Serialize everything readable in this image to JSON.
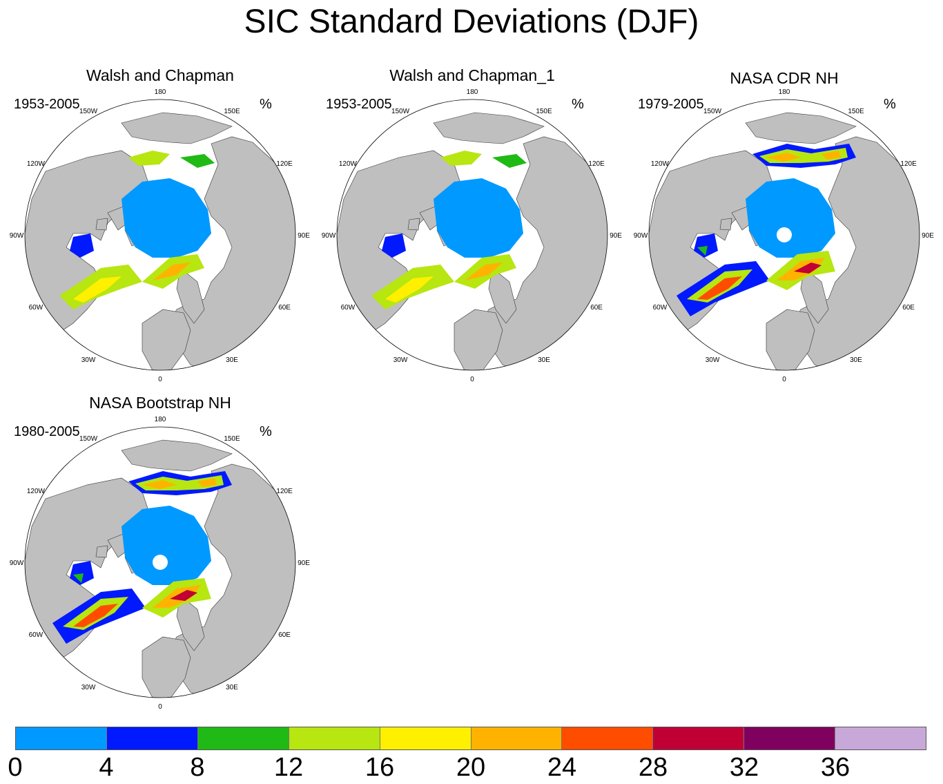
{
  "title": "SIC Standard Deviations (DJF)",
  "units_label": "%",
  "lon_labels": [
    "180",
    "150E",
    "120E",
    "90E",
    "60E",
    "30E",
    "0",
    "30W",
    "60W",
    "90W",
    "120W",
    "150W"
  ],
  "panels": [
    {
      "title": "Walsh and Chapman",
      "period": "1953-2005",
      "pole_hole": false,
      "style": "wc"
    },
    {
      "title": "Walsh and Chapman_1",
      "period": "1953-2005",
      "pole_hole": false,
      "style": "wc"
    },
    {
      "title": "NASA CDR NH",
      "period": "1979-2005",
      "pole_hole": true,
      "style": "sat"
    },
    {
      "title": "NASA Bootstrap NH",
      "period": "1980-2005",
      "pole_hole": true,
      "style": "sat"
    }
  ],
  "colorbar": {
    "colors": [
      "#0099ff",
      "#0019ff",
      "#1fba15",
      "#b7e610",
      "#fff000",
      "#ffb300",
      "#ff4d00",
      "#c00035",
      "#80005f",
      "#c8a8d8"
    ],
    "tick_labels": [
      "0",
      "4",
      "8",
      "12",
      "16",
      "20",
      "24",
      "28",
      "32",
      "36"
    ]
  },
  "land_color": "#bfbfbf"
}
